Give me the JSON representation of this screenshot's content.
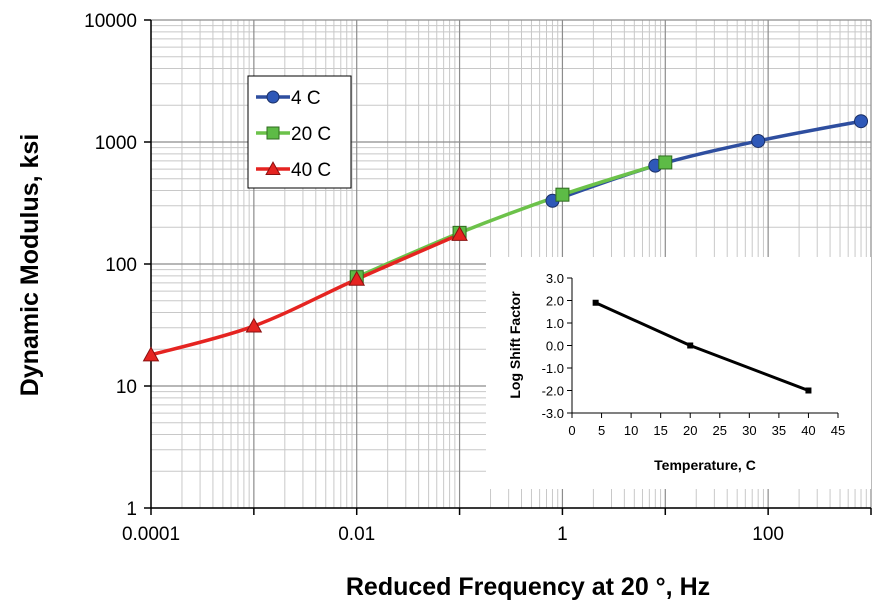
{
  "chart_data": [
    {
      "type": "line",
      "title": "",
      "xlabel": "Reduced Frequency at 20 °, Hz",
      "ylabel": "Dynamic Modulus, ksi",
      "x_scale": "log",
      "y_scale": "log",
      "xlim": [
        0.0001,
        1000
      ],
      "ylim": [
        1,
        10000
      ],
      "x_tick_labels": [
        "0.0001",
        "0.01",
        "1",
        "100"
      ],
      "x_tick_values": [
        0.0001,
        0.01,
        1,
        100
      ],
      "y_tick_labels": [
        "1",
        "10",
        "100",
        "1000",
        "10000"
      ],
      "y_tick_values": [
        1,
        10,
        100,
        1000,
        10000
      ],
      "grid": true,
      "legend_position": "top-left",
      "series": [
        {
          "name": "4 C",
          "color": "#2E4E9F",
          "marker": "circle",
          "marker_color": "#2E58B8",
          "x": [
            0.8,
            8,
            80,
            800
          ],
          "y": [
            330,
            640,
            1020,
            1480
          ]
        },
        {
          "name": "20 C",
          "color": "#6CC24A",
          "marker": "square",
          "marker_color": "#5DBB46",
          "x": [
            0.01,
            0.1,
            1,
            10
          ],
          "y": [
            78,
            180,
            370,
            680
          ]
        },
        {
          "name": "40 C",
          "color": "#E52421",
          "marker": "triangle",
          "marker_color": "#E52421",
          "x": [
            0.0001,
            0.001,
            0.01,
            0.1
          ],
          "y": [
            18,
            31,
            75,
            175
          ]
        }
      ]
    },
    {
      "type": "line",
      "title": "",
      "xlabel": "Temperature, C",
      "ylabel": "Log Shift Factor",
      "xlim": [
        0,
        45
      ],
      "ylim": [
        -3.0,
        3.0
      ],
      "x_tick_labels": [
        "0",
        "5",
        "10",
        "15",
        "20",
        "25",
        "30",
        "35",
        "40",
        "45"
      ],
      "x_tick_values": [
        0,
        5,
        10,
        15,
        20,
        25,
        30,
        35,
        40,
        45
      ],
      "y_tick_labels": [
        "3.0",
        "2.0",
        "1.0",
        "0.0",
        "-1.0",
        "-2.0",
        "-3.0"
      ],
      "y_tick_values": [
        3,
        2,
        1,
        0,
        -1,
        -2,
        -3
      ],
      "grid": false,
      "series": [
        {
          "color": "#000000",
          "x": [
            4,
            20,
            40
          ],
          "y": [
            1.9,
            0.0,
            -2.0
          ]
        }
      ]
    }
  ]
}
